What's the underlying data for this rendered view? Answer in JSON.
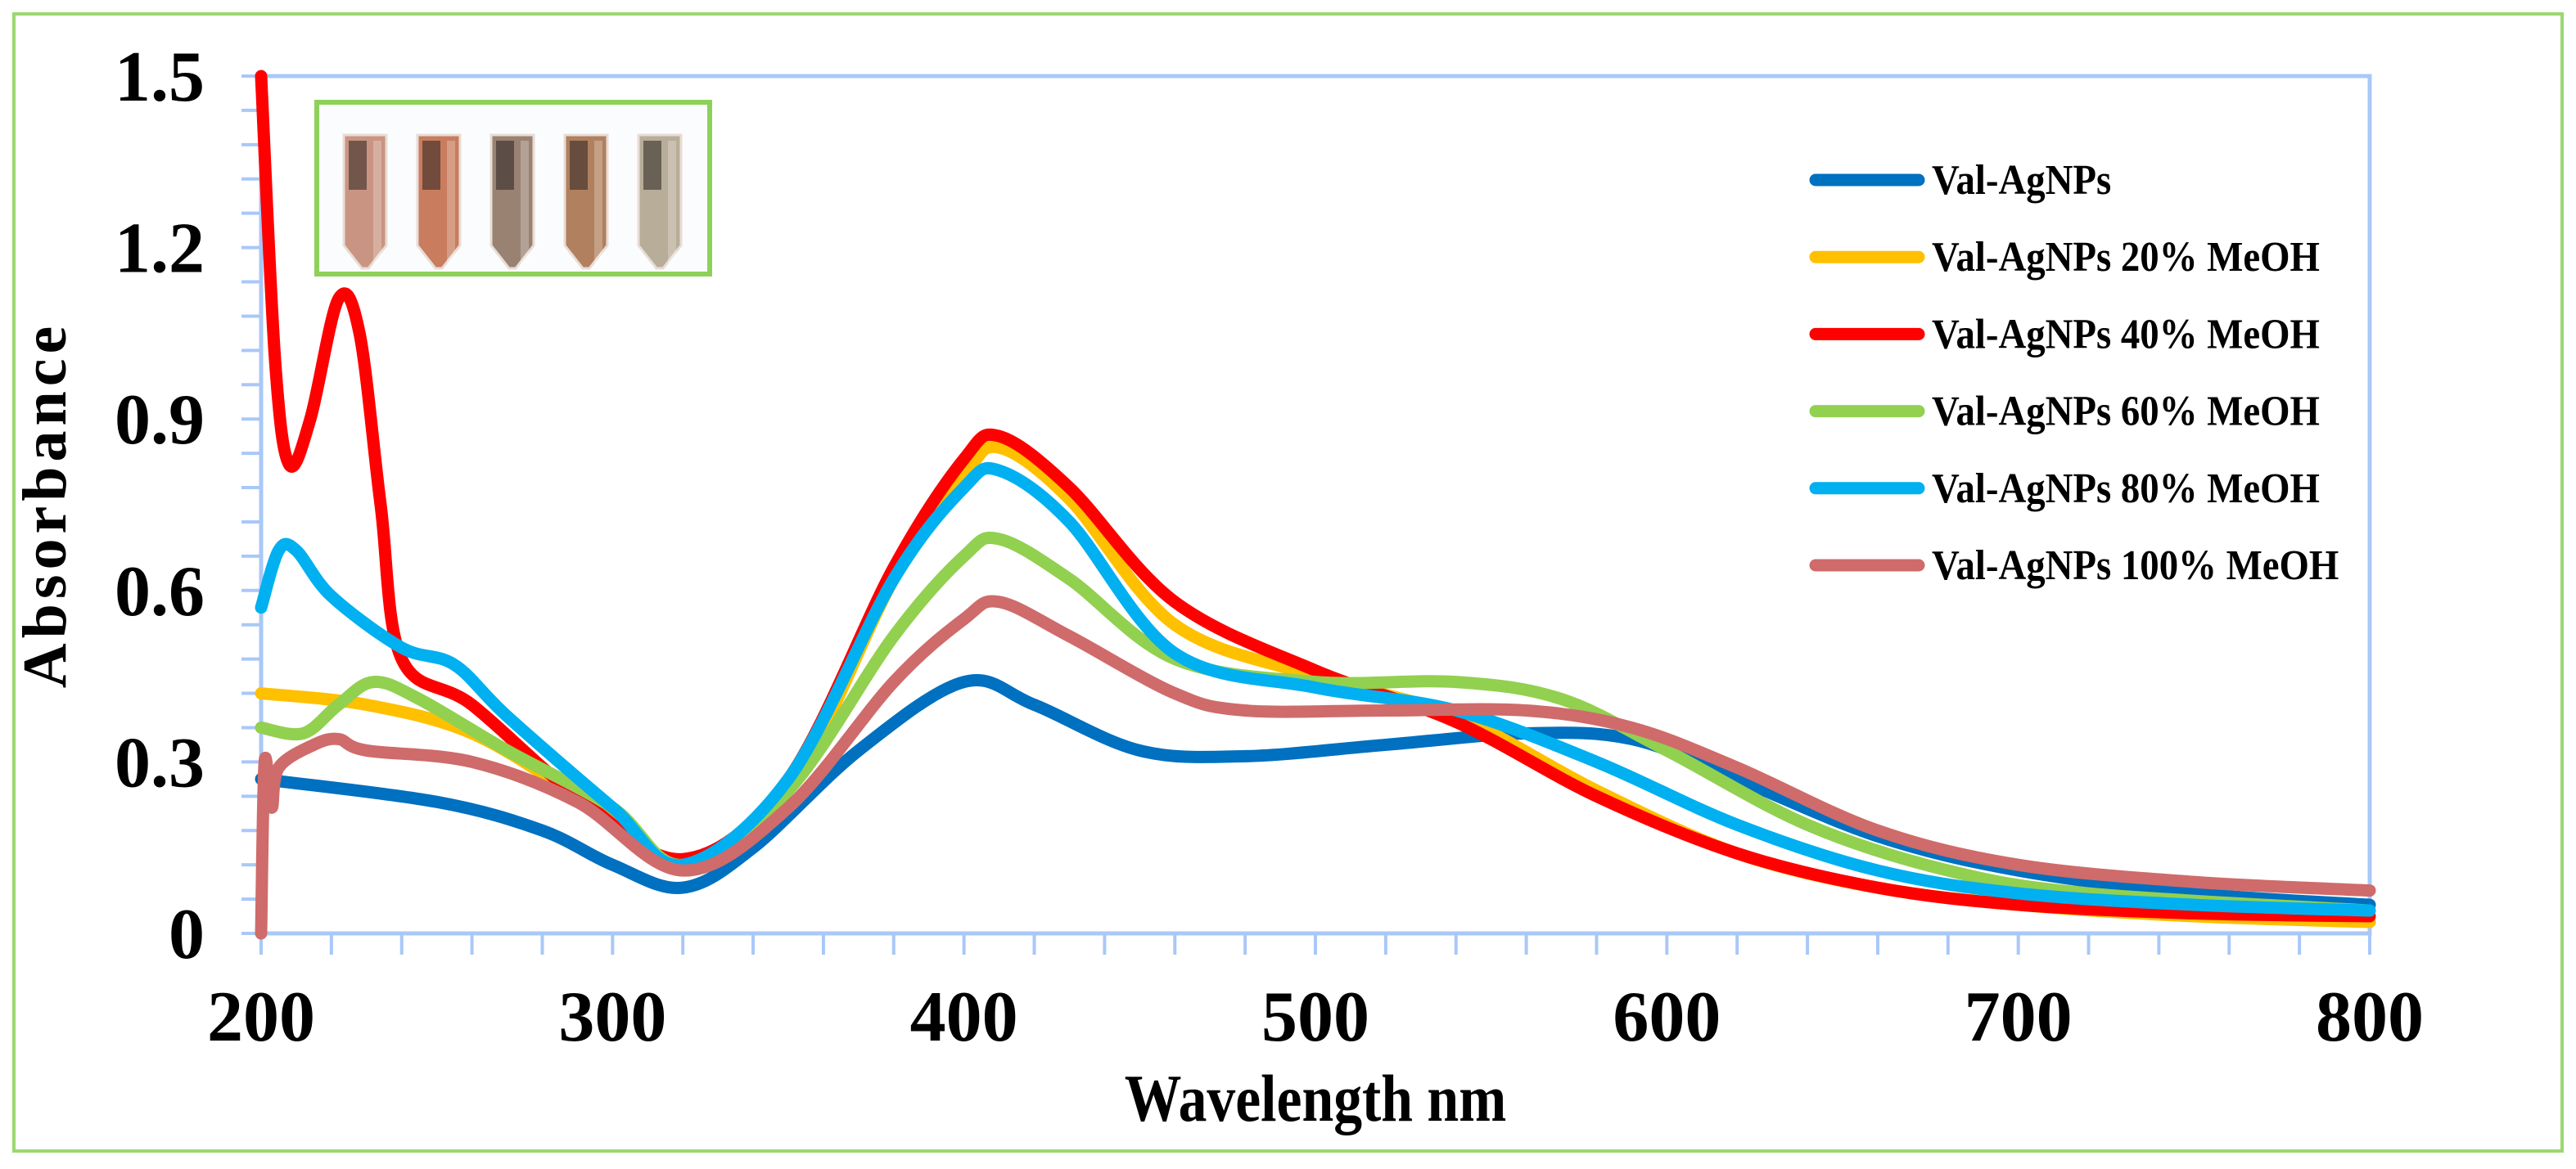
{
  "chart_data": {
    "type": "line",
    "title": "",
    "xlabel": "Wavelength nm",
    "ylabel": "Absorbance",
    "xlim": [
      200,
      800
    ],
    "ylim": [
      0,
      1.5
    ],
    "xticks": [
      200,
      300,
      400,
      500,
      600,
      700,
      800
    ],
    "xtick_labels": [
      "200",
      "300",
      "400",
      "500",
      "600",
      "700",
      "800"
    ],
    "yticks": [
      0,
      0.3,
      0.6,
      0.9,
      1.2,
      1.5
    ],
    "ytick_labels": [
      "0",
      "0.3",
      "0.6",
      "0.9",
      "1.2",
      "1.5"
    ],
    "grid": false,
    "legend_position": "top-right",
    "series": [
      {
        "name": "Val-AgNPs",
        "color": "#0070C0",
        "x": [
          200,
          250,
          280,
          300,
          320,
          340,
          370,
          400,
          420,
          450,
          480,
          520,
          560,
          590,
          620,
          660,
          700,
          750,
          800
        ],
        "y": [
          0.27,
          0.23,
          0.18,
          0.12,
          0.08,
          0.15,
          0.32,
          0.44,
          0.4,
          0.32,
          0.31,
          0.33,
          0.35,
          0.34,
          0.27,
          0.17,
          0.11,
          0.07,
          0.05
        ]
      },
      {
        "name": "Val-AgNPs 20% MeOH",
        "color": "#FFC000",
        "x": [
          200,
          230,
          260,
          290,
          320,
          350,
          380,
          400,
          410,
          430,
          460,
          500,
          540,
          580,
          620,
          660,
          700,
          750,
          800
        ],
        "y": [
          0.42,
          0.4,
          0.35,
          0.24,
          0.12,
          0.25,
          0.62,
          0.8,
          0.85,
          0.76,
          0.54,
          0.45,
          0.38,
          0.25,
          0.14,
          0.08,
          0.05,
          0.03,
          0.02
        ]
      },
      {
        "name": "Val-AgNPs 40% MeOH",
        "color": "#FF0000",
        "x": [
          200,
          204,
          208,
          214,
          222,
          228,
          234,
          240,
          260,
          290,
          320,
          350,
          380,
          400,
          410,
          430,
          460,
          500,
          540,
          580,
          620,
          660,
          700,
          750,
          800
        ],
        "y": [
          1.5,
          1.0,
          0.82,
          0.9,
          1.11,
          1.05,
          0.75,
          0.48,
          0.4,
          0.24,
          0.13,
          0.27,
          0.64,
          0.83,
          0.87,
          0.78,
          0.58,
          0.46,
          0.37,
          0.24,
          0.14,
          0.08,
          0.05,
          0.035,
          0.03
        ]
      },
      {
        "name": "Val-AgNPs 60% MeOH",
        "color": "#92D050",
        "x": [
          200,
          212,
          222,
          232,
          245,
          270,
          300,
          320,
          350,
          380,
          400,
          410,
          430,
          460,
          500,
          540,
          570,
          600,
          640,
          680,
          720,
          800
        ],
        "y": [
          0.36,
          0.35,
          0.4,
          0.44,
          0.41,
          0.32,
          0.22,
          0.12,
          0.25,
          0.52,
          0.66,
          0.69,
          0.62,
          0.48,
          0.44,
          0.44,
          0.41,
          0.32,
          0.19,
          0.11,
          0.07,
          0.04
        ]
      },
      {
        "name": "Val-AgNPs 80% MeOH",
        "color": "#00B0F0",
        "x": [
          200,
          205,
          210,
          220,
          240,
          255,
          270,
          300,
          320,
          350,
          380,
          400,
          410,
          430,
          460,
          500,
          540,
          580,
          620,
          660,
          700,
          750,
          800
        ],
        "y": [
          0.57,
          0.67,
          0.67,
          0.59,
          0.5,
          0.47,
          0.38,
          0.22,
          0.12,
          0.27,
          0.62,
          0.78,
          0.81,
          0.72,
          0.49,
          0.43,
          0.39,
          0.3,
          0.19,
          0.11,
          0.07,
          0.05,
          0.04
        ]
      },
      {
        "name": "Val-AgNPs 100% MeOH",
        "color": "#CF6B6B",
        "x": [
          200,
          201,
          203,
          205,
          215,
          222,
          230,
          260,
          290,
          320,
          350,
          380,
          400,
          410,
          430,
          460,
          480,
          520,
          560,
          590,
          620,
          660,
          700,
          750,
          800
        ],
        "y": [
          0.0,
          0.3,
          0.22,
          0.29,
          0.33,
          0.34,
          0.32,
          0.3,
          0.23,
          0.11,
          0.22,
          0.44,
          0.55,
          0.58,
          0.52,
          0.42,
          0.39,
          0.39,
          0.39,
          0.36,
          0.29,
          0.18,
          0.12,
          0.09,
          0.075
        ]
      }
    ]
  },
  "colors": {
    "frame": "#A9C8F8",
    "border": "#9BD770",
    "inset_border": "#8ED15A"
  }
}
